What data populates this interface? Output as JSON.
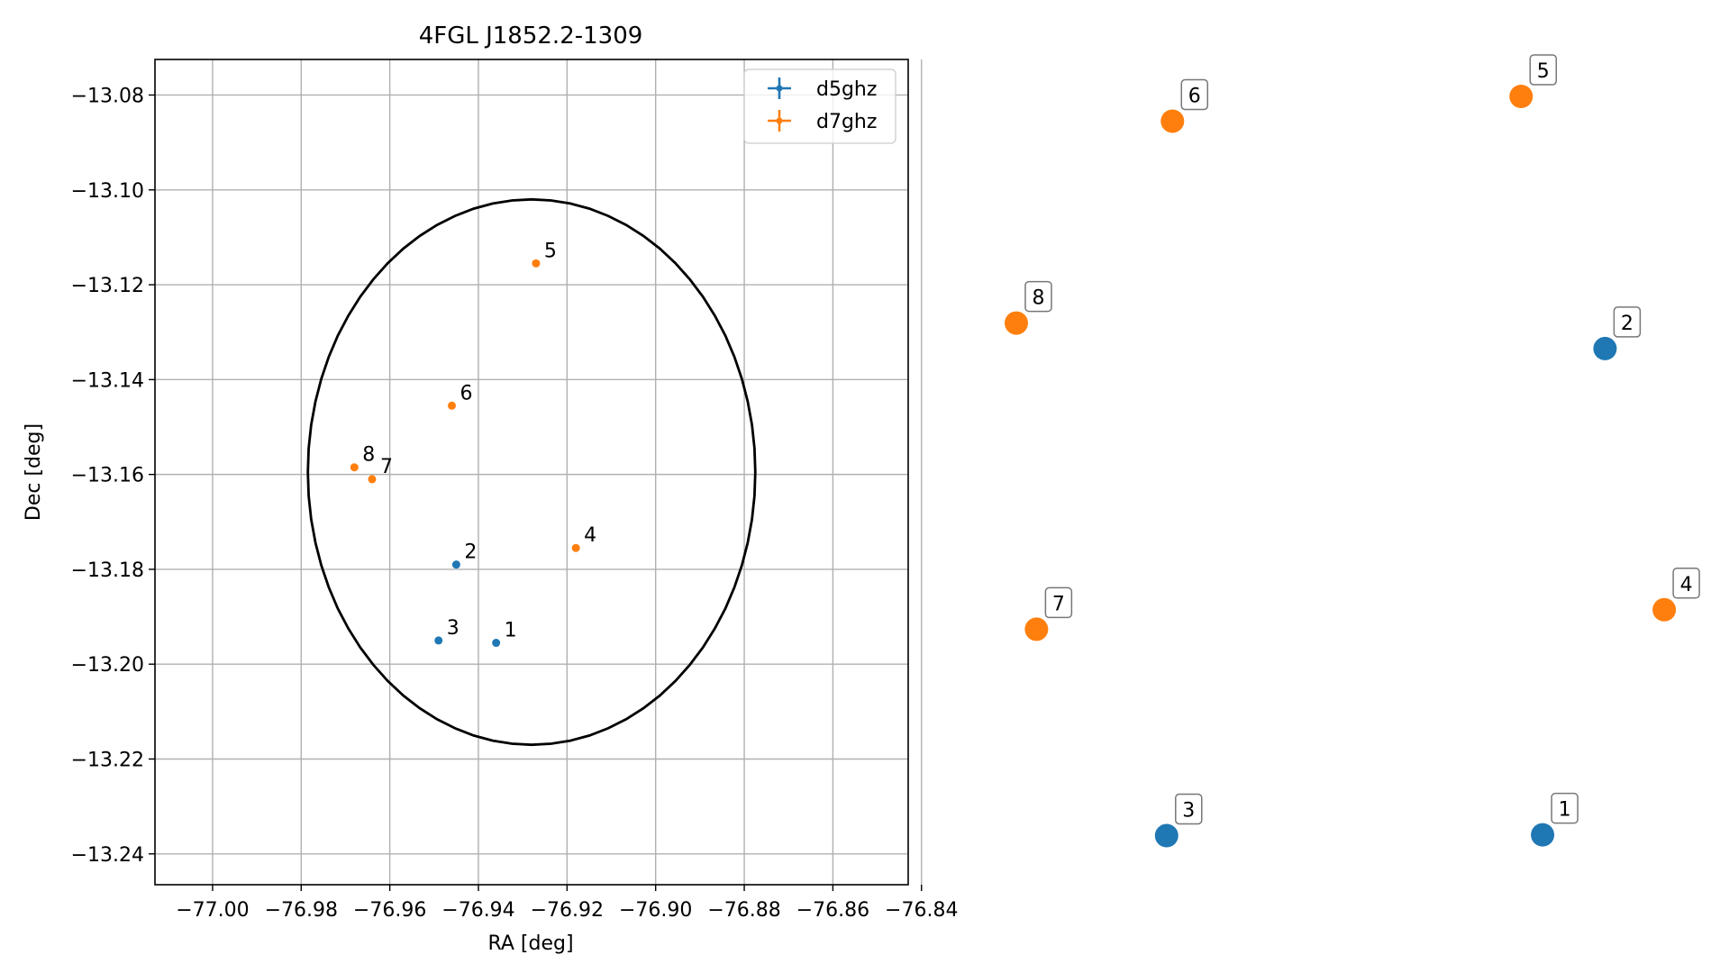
{
  "chart_data": [
    {
      "type": "scatter",
      "title": "4FGL J1852.2-1309",
      "xlabel": "RA [deg]",
      "ylabel": "Dec [deg]",
      "xlim": [
        -77.013,
        -76.843
      ],
      "ylim": [
        -13.2465,
        -13.0725
      ],
      "grid": true,
      "legend_position": "top-right",
      "x_ticks": [
        -77.0,
        -76.98,
        -76.96,
        -76.94,
        -76.92,
        -76.9,
        -76.88,
        -76.86,
        -76.84
      ],
      "x_tick_labels": [
        "−77.00",
        "−76.98",
        "−76.96",
        "−76.94",
        "−76.92",
        "−76.90",
        "−76.88",
        "−76.86",
        "−76.84"
      ],
      "y_ticks": [
        -13.24,
        -13.22,
        -13.2,
        -13.18,
        -13.16,
        -13.14,
        -13.12,
        -13.1,
        -13.08
      ],
      "y_tick_labels": [
        "−13.24",
        "−13.22",
        "−13.20",
        "−13.18",
        "−13.16",
        "−13.14",
        "−13.12",
        "−13.10",
        "−13.08"
      ],
      "ellipse": {
        "center": [
          -76.928,
          -13.1595
        ],
        "ra_semi_axis": 0.0505,
        "dec_semi_axis": 0.0575,
        "color": "#000000"
      },
      "series": [
        {
          "name": "d5ghz",
          "color": "#1f77b4",
          "points": [
            {
              "label": "1",
              "x": -76.936,
              "y": -13.1955
            },
            {
              "label": "2",
              "x": -76.945,
              "y": -13.179
            },
            {
              "label": "3",
              "x": -76.949,
              "y": -13.195
            }
          ]
        },
        {
          "name": "d7ghz",
          "color": "#ff7f0e",
          "points": [
            {
              "label": "4",
              "x": -76.918,
              "y": -13.1755
            },
            {
              "label": "5",
              "x": -76.927,
              "y": -13.1155
            },
            {
              "label": "6",
              "x": -76.946,
              "y": -13.1455
            },
            {
              "label": "7",
              "x": -76.964,
              "y": -13.161
            },
            {
              "label": "8",
              "x": -76.968,
              "y": -13.1585
            }
          ]
        }
      ]
    },
    {
      "type": "scatter",
      "title": "",
      "axes_visible": false,
      "series": [
        {
          "name": "d5ghz",
          "color": "#1f77b4",
          "points": [
            {
              "label": "1",
              "x": 0.809,
              "y": 0.016
            },
            {
              "label": "2",
              "x": 0.905,
              "y": 0.664
            },
            {
              "label": "3",
              "x": 0.231,
              "y": 0.015
            }
          ]
        },
        {
          "name": "d7ghz",
          "color": "#ff7f0e",
          "points": [
            {
              "label": "4",
              "x": 0.996,
              "y": 0.316
            },
            {
              "label": "5",
              "x": 0.776,
              "y": 1.0
            },
            {
              "label": "6",
              "x": 0.24,
              "y": 0.967
            },
            {
              "label": "7",
              "x": 0.031,
              "y": 0.29
            },
            {
              "label": "8",
              "x": 0.0,
              "y": 0.698
            }
          ]
        }
      ]
    }
  ]
}
